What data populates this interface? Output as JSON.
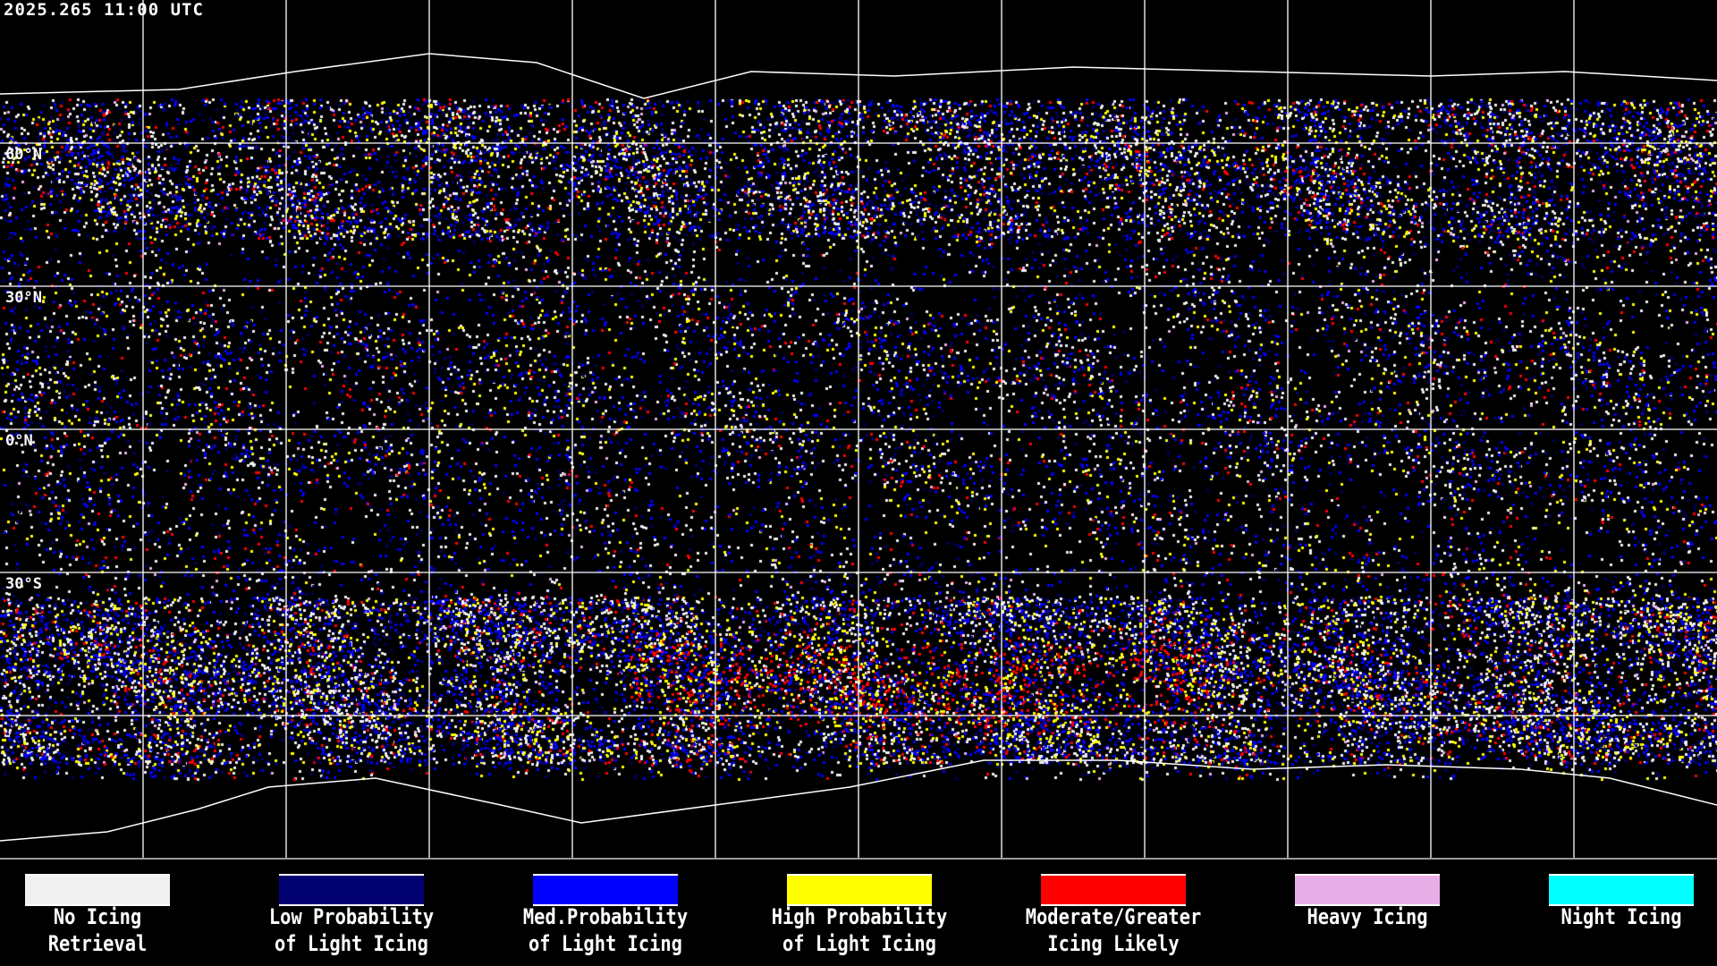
{
  "title": "2025.265 11:00 UTC",
  "lat_labels": [
    "60°N",
    "30°N",
    "0°N",
    "30°S"
  ],
  "legend": [
    {
      "line1": "No Icing",
      "line2": "Retrieval",
      "color": "#f0f0f0"
    },
    {
      "line1": "Low Probability",
      "line2": "of Light Icing",
      "color": "#000070"
    },
    {
      "line1": "Med.Probability",
      "line2": "of Light Icing",
      "color": "#0000ff"
    },
    {
      "line1": "High Probability",
      "line2": "of Light Icing",
      "color": "#ffff00"
    },
    {
      "line1": "Moderate/Greater",
      "line2": "Icing Likely",
      "color": "#ff0000"
    },
    {
      "line1": "Heavy Icing",
      "line2": "",
      "color": "#e8aee8"
    },
    {
      "line1": "Night Icing",
      "line2": "",
      "color": "#00ffff"
    }
  ],
  "colors": {
    "background": "#000000",
    "grid": "#ffffff",
    "coastline": "#ffffff"
  }
}
